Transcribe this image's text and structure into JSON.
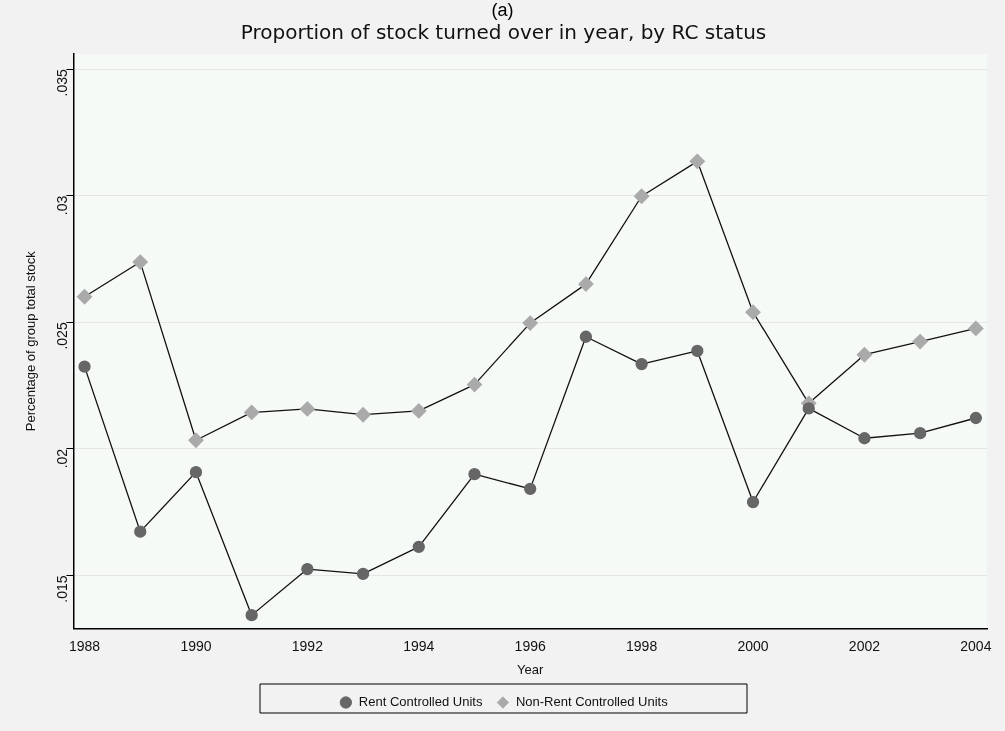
{
  "chart_data": {
    "type": "line",
    "title": "Proportion of stock turned over in year, by RC status",
    "xlabel": "Year",
    "ylabel": "Percentage of group total stock",
    "annotations": [
      "(a)"
    ],
    "x": [
      1988,
      1989,
      1990,
      1991,
      1992,
      1993,
      1994,
      1995,
      1996,
      1997,
      1998,
      1999,
      2000,
      2001,
      2002,
      2003,
      2004
    ],
    "series": [
      {
        "name": "Rent Controlled Units",
        "color": "#666666",
        "marker": "circle",
        "values": [
          0.02325,
          0.01673,
          0.01908,
          0.01343,
          0.01525,
          0.01506,
          0.01613,
          0.019,
          0.01842,
          0.02443,
          0.02335,
          0.02387,
          0.0179,
          0.0216,
          0.02042,
          0.02062,
          0.02122
        ]
      },
      {
        "name": "Non-Rent Controlled Units",
        "color": "#aaaaaa",
        "marker": "diamond",
        "values": [
          0.02601,
          0.02738,
          0.02034,
          0.02144,
          0.02158,
          0.02135,
          0.0215,
          0.02254,
          0.02497,
          0.02651,
          0.02998,
          0.03136,
          0.0254,
          0.0218,
          0.02372,
          0.02424,
          0.02476
        ]
      }
    ],
    "xlim": [
      1987.8,
      2004.2
    ],
    "xticks": [
      1988,
      1990,
      1992,
      1994,
      1996,
      1998,
      2000,
      2002,
      2004
    ],
    "ylim": [
      0.0129,
      0.0356
    ],
    "yticks": [
      {
        "value": 0.015,
        "label": ".015"
      },
      {
        "value": 0.02,
        "label": ".02"
      },
      {
        "value": 0.025,
        "label": ".025"
      },
      {
        "value": 0.03,
        "label": ".03"
      },
      {
        "value": 0.035,
        "label": ".035"
      }
    ],
    "grid": "y",
    "legend": "bottom",
    "line_style": "solid"
  }
}
